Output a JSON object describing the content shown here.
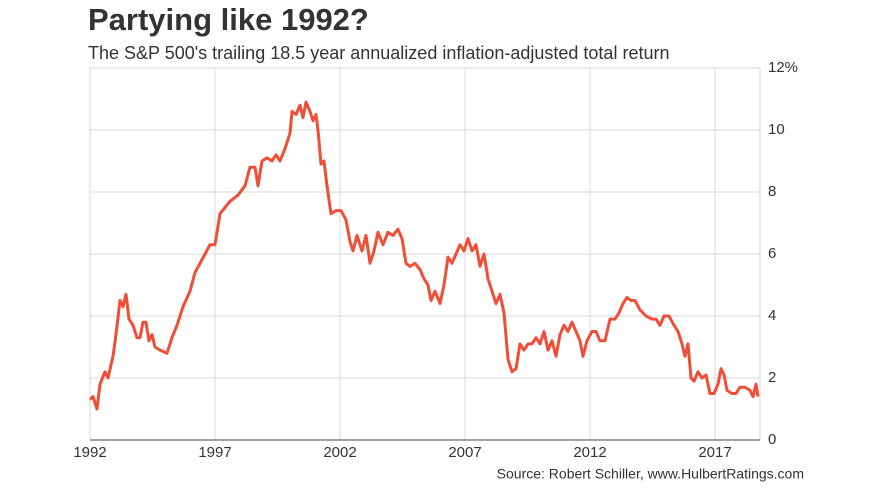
{
  "chart_data": {
    "type": "line",
    "title": "Partying like 1992?",
    "subtitle": "The S&P 500's trailing 18.5 year annualized inflation-adjusted total return",
    "source": "Source: Robert Schiller, www.HulbertRatings.com",
    "color": "#f04e37",
    "grid": true,
    "xlim": [
      1992,
      2018.8
    ],
    "xticks": [
      1992,
      1997,
      2002,
      2007,
      2012,
      2017
    ],
    "ylim": [
      0,
      12
    ],
    "yticks": [
      0,
      2,
      4,
      6,
      8,
      10,
      {
        "value": 12,
        "label": "12%"
      }
    ],
    "x": [
      1992,
      1992.12,
      1992.28,
      1992.4,
      1992.6,
      1992.72,
      1992.92,
      1993.04,
      1993.2,
      1993.32,
      1993.44,
      1993.56,
      1993.72,
      1993.88,
      1994,
      1994.12,
      1994.24,
      1994.36,
      1994.48,
      1994.6,
      1994.8,
      1995.08,
      1995.28,
      1995.48,
      1995.72,
      1996,
      1996.2,
      1996.4,
      1996.6,
      1996.8,
      1997,
      1997.2,
      1997.4,
      1997.6,
      1997.92,
      1998.2,
      1998.4,
      1998.6,
      1998.72,
      1998.88,
      1999.08,
      1999.28,
      1999.44,
      1999.6,
      1999.8,
      2000,
      2000.08,
      2000.24,
      2000.4,
      2000.52,
      2000.64,
      2000.8,
      2000.92,
      2001.04,
      2001.12,
      2001.24,
      2001.36,
      2001.48,
      2001.64,
      2001.84,
      2002.04,
      2002.24,
      2002.4,
      2002.52,
      2002.68,
      2002.88,
      2003.04,
      2003.2,
      2003.36,
      2003.52,
      2003.72,
      2003.92,
      2004.12,
      2004.32,
      2004.48,
      2004.64,
      2004.8,
      2005,
      2005.2,
      2005.36,
      2005.52,
      2005.64,
      2005.8,
      2006,
      2006.16,
      2006.32,
      2006.48,
      2006.64,
      2006.8,
      2006.96,
      2007.12,
      2007.28,
      2007.44,
      2007.6,
      2007.76,
      2007.92,
      2008.08,
      2008.24,
      2008.4,
      2008.56,
      2008.72,
      2008.88,
      2009.04,
      2009.2,
      2009.36,
      2009.52,
      2009.68,
      2009.84,
      2010,
      2010.16,
      2010.32,
      2010.48,
      2010.64,
      2010.8,
      2010.96,
      2011.12,
      2011.28,
      2011.44,
      2011.6,
      2011.72,
      2011.88,
      2012.08,
      2012.24,
      2012.4,
      2012.6,
      2012.8,
      2013,
      2013.16,
      2013.32,
      2013.48,
      2013.64,
      2013.8,
      2014,
      2014.24,
      2014.48,
      2014.64,
      2014.8,
      2014.96,
      2015.16,
      2015.36,
      2015.52,
      2015.68,
      2015.8,
      2015.92,
      2016.04,
      2016.16,
      2016.32,
      2016.48,
      2016.64,
      2016.8,
      2016.96,
      2017.12,
      2017.24,
      2017.36,
      2017.48,
      2017.68,
      2017.84,
      2018,
      2018.2,
      2018.4,
      2018.52,
      2018.64,
      2018.72
    ],
    "values": [
      1.3,
      1.4,
      1.0,
      1.8,
      2.2,
      2.0,
      2.7,
      3.4,
      4.5,
      4.3,
      4.7,
      3.9,
      3.7,
      3.3,
      3.3,
      3.8,
      3.8,
      3.2,
      3.4,
      3.0,
      2.9,
      2.8,
      3.3,
      3.7,
      4.3,
      4.8,
      5.4,
      5.7,
      6.0,
      6.3,
      6.3,
      7.3,
      7.5,
      7.7,
      7.9,
      8.2,
      8.8,
      8.8,
      8.2,
      9.0,
      9.1,
      9.0,
      9.2,
      9.0,
      9.4,
      9.9,
      10.6,
      10.5,
      10.8,
      10.4,
      10.9,
      10.6,
      10.3,
      10.5,
      10.0,
      8.9,
      9.0,
      8.2,
      7.3,
      7.4,
      7.4,
      7.1,
      6.4,
      6.1,
      6.6,
      6.1,
      6.6,
      5.7,
      6.1,
      6.7,
      6.3,
      6.7,
      6.6,
      6.8,
      6.5,
      5.7,
      5.6,
      5.7,
      5.5,
      5.2,
      5.0,
      4.5,
      4.8,
      4.4,
      5.0,
      5.9,
      5.7,
      6.0,
      6.3,
      6.1,
      6.5,
      6.1,
      6.3,
      5.6,
      6.0,
      5.2,
      4.8,
      4.4,
      4.7,
      4.1,
      2.6,
      2.2,
      2.3,
      3.1,
      2.9,
      3.1,
      3.1,
      3.3,
      3.1,
      3.5,
      2.9,
      3.2,
      2.7,
      3.4,
      3.7,
      3.5,
      3.8,
      3.5,
      3.2,
      2.7,
      3.2,
      3.5,
      3.5,
      3.2,
      3.2,
      3.9,
      3.9,
      4.1,
      4.4,
      4.6,
      4.5,
      4.5,
      4.2,
      4.0,
      3.9,
      3.9,
      3.7,
      4.0,
      4.0,
      3.7,
      3.5,
      3.1,
      2.7,
      3.1,
      2.0,
      1.9,
      2.2,
      2.0,
      2.1,
      1.5,
      1.5,
      1.8,
      2.3,
      2.1,
      1.6,
      1.5,
      1.5,
      1.7,
      1.7,
      1.6,
      1.4,
      1.8,
      1.4
    ]
  }
}
